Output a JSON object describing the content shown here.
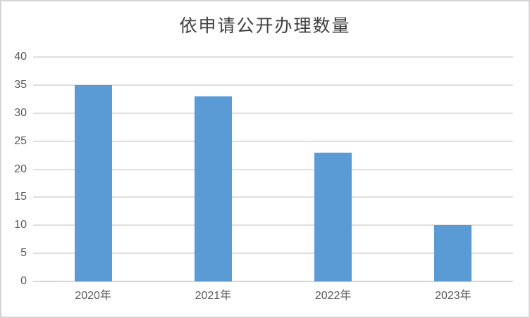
{
  "window": {
    "background": "#ffffff",
    "frame_color": "#d4d4d4"
  },
  "chart_data": {
    "type": "bar",
    "title": "依申请公开办理数量",
    "categories": [
      "2020年",
      "2021年",
      "2022年",
      "2023年"
    ],
    "values": [
      35,
      33,
      23,
      10
    ],
    "xlabel": "",
    "ylabel": "",
    "ylim": [
      0,
      40
    ],
    "ytick_interval": 5,
    "yticks": [
      0,
      5,
      10,
      15,
      20,
      25,
      30,
      35,
      40
    ],
    "grid": true,
    "legend": "none",
    "bar_color": "#5B9BD5",
    "gridline_color": "#dedede",
    "axis_line_color": "#d6d6d6",
    "tick_label_color": "#595959",
    "title_color": "#404040"
  }
}
